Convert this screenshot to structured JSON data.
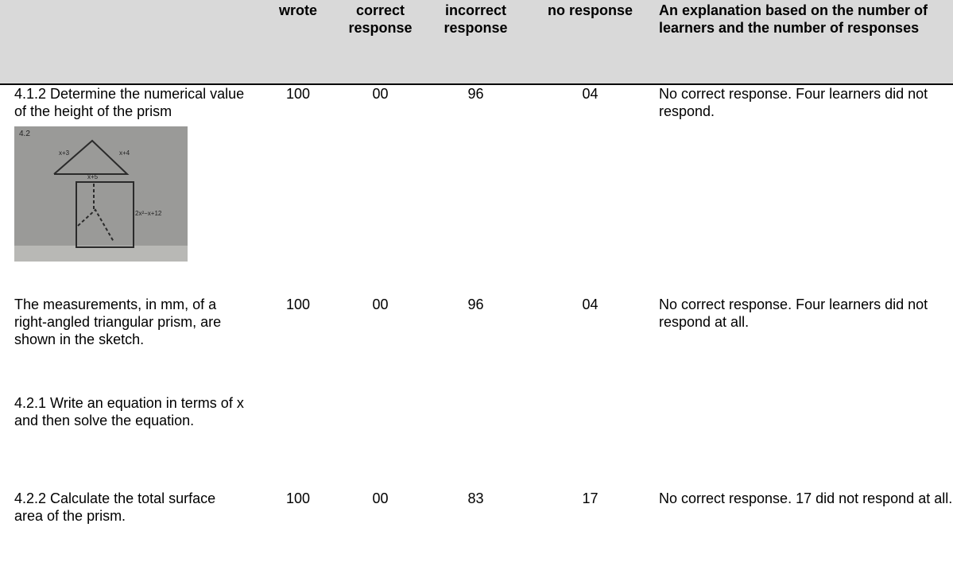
{
  "table": {
    "header": [
      "",
      "wrote",
      "correct response",
      "incorrect response",
      "no response",
      "An explanation based on the number of learners and the number of responses"
    ],
    "rows": [
      {
        "question": [
          "4.1.2 Determine the numerical value of the height of the prism"
        ],
        "sketch": {
          "labels": [
            "4.2",
            "x+3",
            "x+4",
            "x+5",
            "2x²−x+12"
          ]
        },
        "cells": [
          "100",
          "00",
          "96",
          "04",
          "No correct response. Four learners did not respond."
        ]
      },
      {
        "question": [
          "The measurements, in mm, of a right-angled triangular prism, are shown in the sketch.",
          "4.2.1 Write an equation in terms of x and then solve the equation."
        ],
        "cells": [
          "100",
          "00",
          "96",
          "04",
          "No correct response. Four learners did not respond at all."
        ]
      },
      {
        "question": [
          "4.2.2 Calculate the total surface area of the prism."
        ],
        "cells": [
          "100",
          "00",
          "83",
          "17",
          "No correct response. 17 did not respond at all."
        ]
      }
    ]
  }
}
